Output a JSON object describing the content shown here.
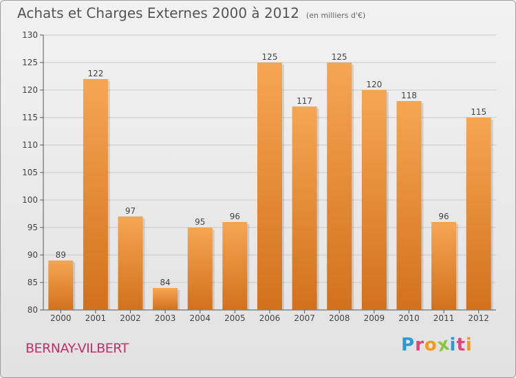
{
  "chart_data": {
    "type": "bar",
    "title": "Achats et Charges Externes 2000 à 2012",
    "unit_label": "(en milliers d'€)",
    "categories": [
      "2000",
      "2001",
      "2002",
      "2003",
      "2004",
      "2005",
      "2006",
      "2007",
      "2008",
      "2009",
      "2010",
      "2011",
      "2012"
    ],
    "values": [
      89,
      122,
      97,
      84,
      95,
      96,
      125,
      117,
      125,
      120,
      118,
      96,
      115
    ],
    "value_labels": [
      "89",
      "122",
      "97",
      "84",
      "95",
      "96",
      "125",
      "117",
      "125",
      "120",
      "118",
      "96",
      "115"
    ],
    "ylim": [
      80,
      130
    ],
    "yticks": [
      80,
      85,
      90,
      95,
      100,
      105,
      110,
      115,
      120,
      125,
      130
    ],
    "grid": true,
    "bar_color_top": "#f6a652",
    "bar_color_bottom": "#d2711c"
  },
  "footer": {
    "place_name": "BERNAY-VILBERT"
  },
  "logo": {
    "text": "Proxiti",
    "letters": [
      {
        "ch": "P",
        "color": "#2b9bd6"
      },
      {
        "ch": "r",
        "color": "#e2437a"
      },
      {
        "ch": "o",
        "color": "#f39a1c"
      },
      {
        "ch": "x",
        "color": "#8bc53f"
      },
      {
        "ch": "i",
        "color": "#2b9bd6"
      },
      {
        "ch": "t",
        "color": "#e2437a"
      },
      {
        "ch": "i",
        "color": "#f39a1c"
      }
    ]
  }
}
